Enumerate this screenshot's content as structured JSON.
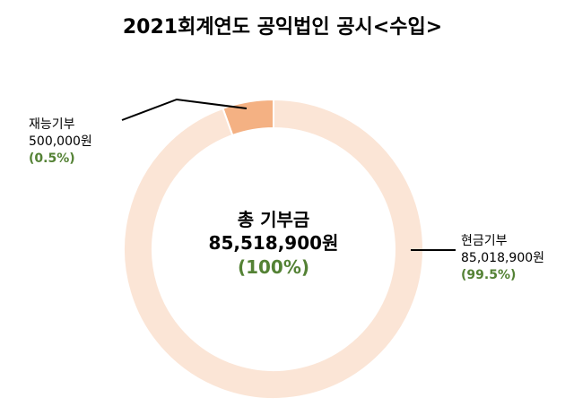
{
  "title": "2021회계연도 공익법인 공시<수입>",
  "chart_data": {
    "type": "pie",
    "title": "2021회계연도 공익법인 공시<수입>",
    "center": {
      "title": "총 기부금",
      "value": "85,518,900원",
      "percent": "(100%)"
    },
    "slices": [
      {
        "name": "현금기부",
        "amount": 85018900,
        "amount_label": "85,018,900원",
        "percent": 99.5,
        "percent_label": "(99.5%)",
        "color": "#FBE5D6"
      },
      {
        "name": "재능기부",
        "amount": 500000,
        "amount_label": "500,000원",
        "percent": 0.5,
        "percent_label": "(0.5%)",
        "color": "#F4B183"
      }
    ],
    "legend": "none"
  },
  "colors": {
    "percent_text": "#548235",
    "leader_line": "#000000",
    "slice_separator": "#ffffff"
  }
}
